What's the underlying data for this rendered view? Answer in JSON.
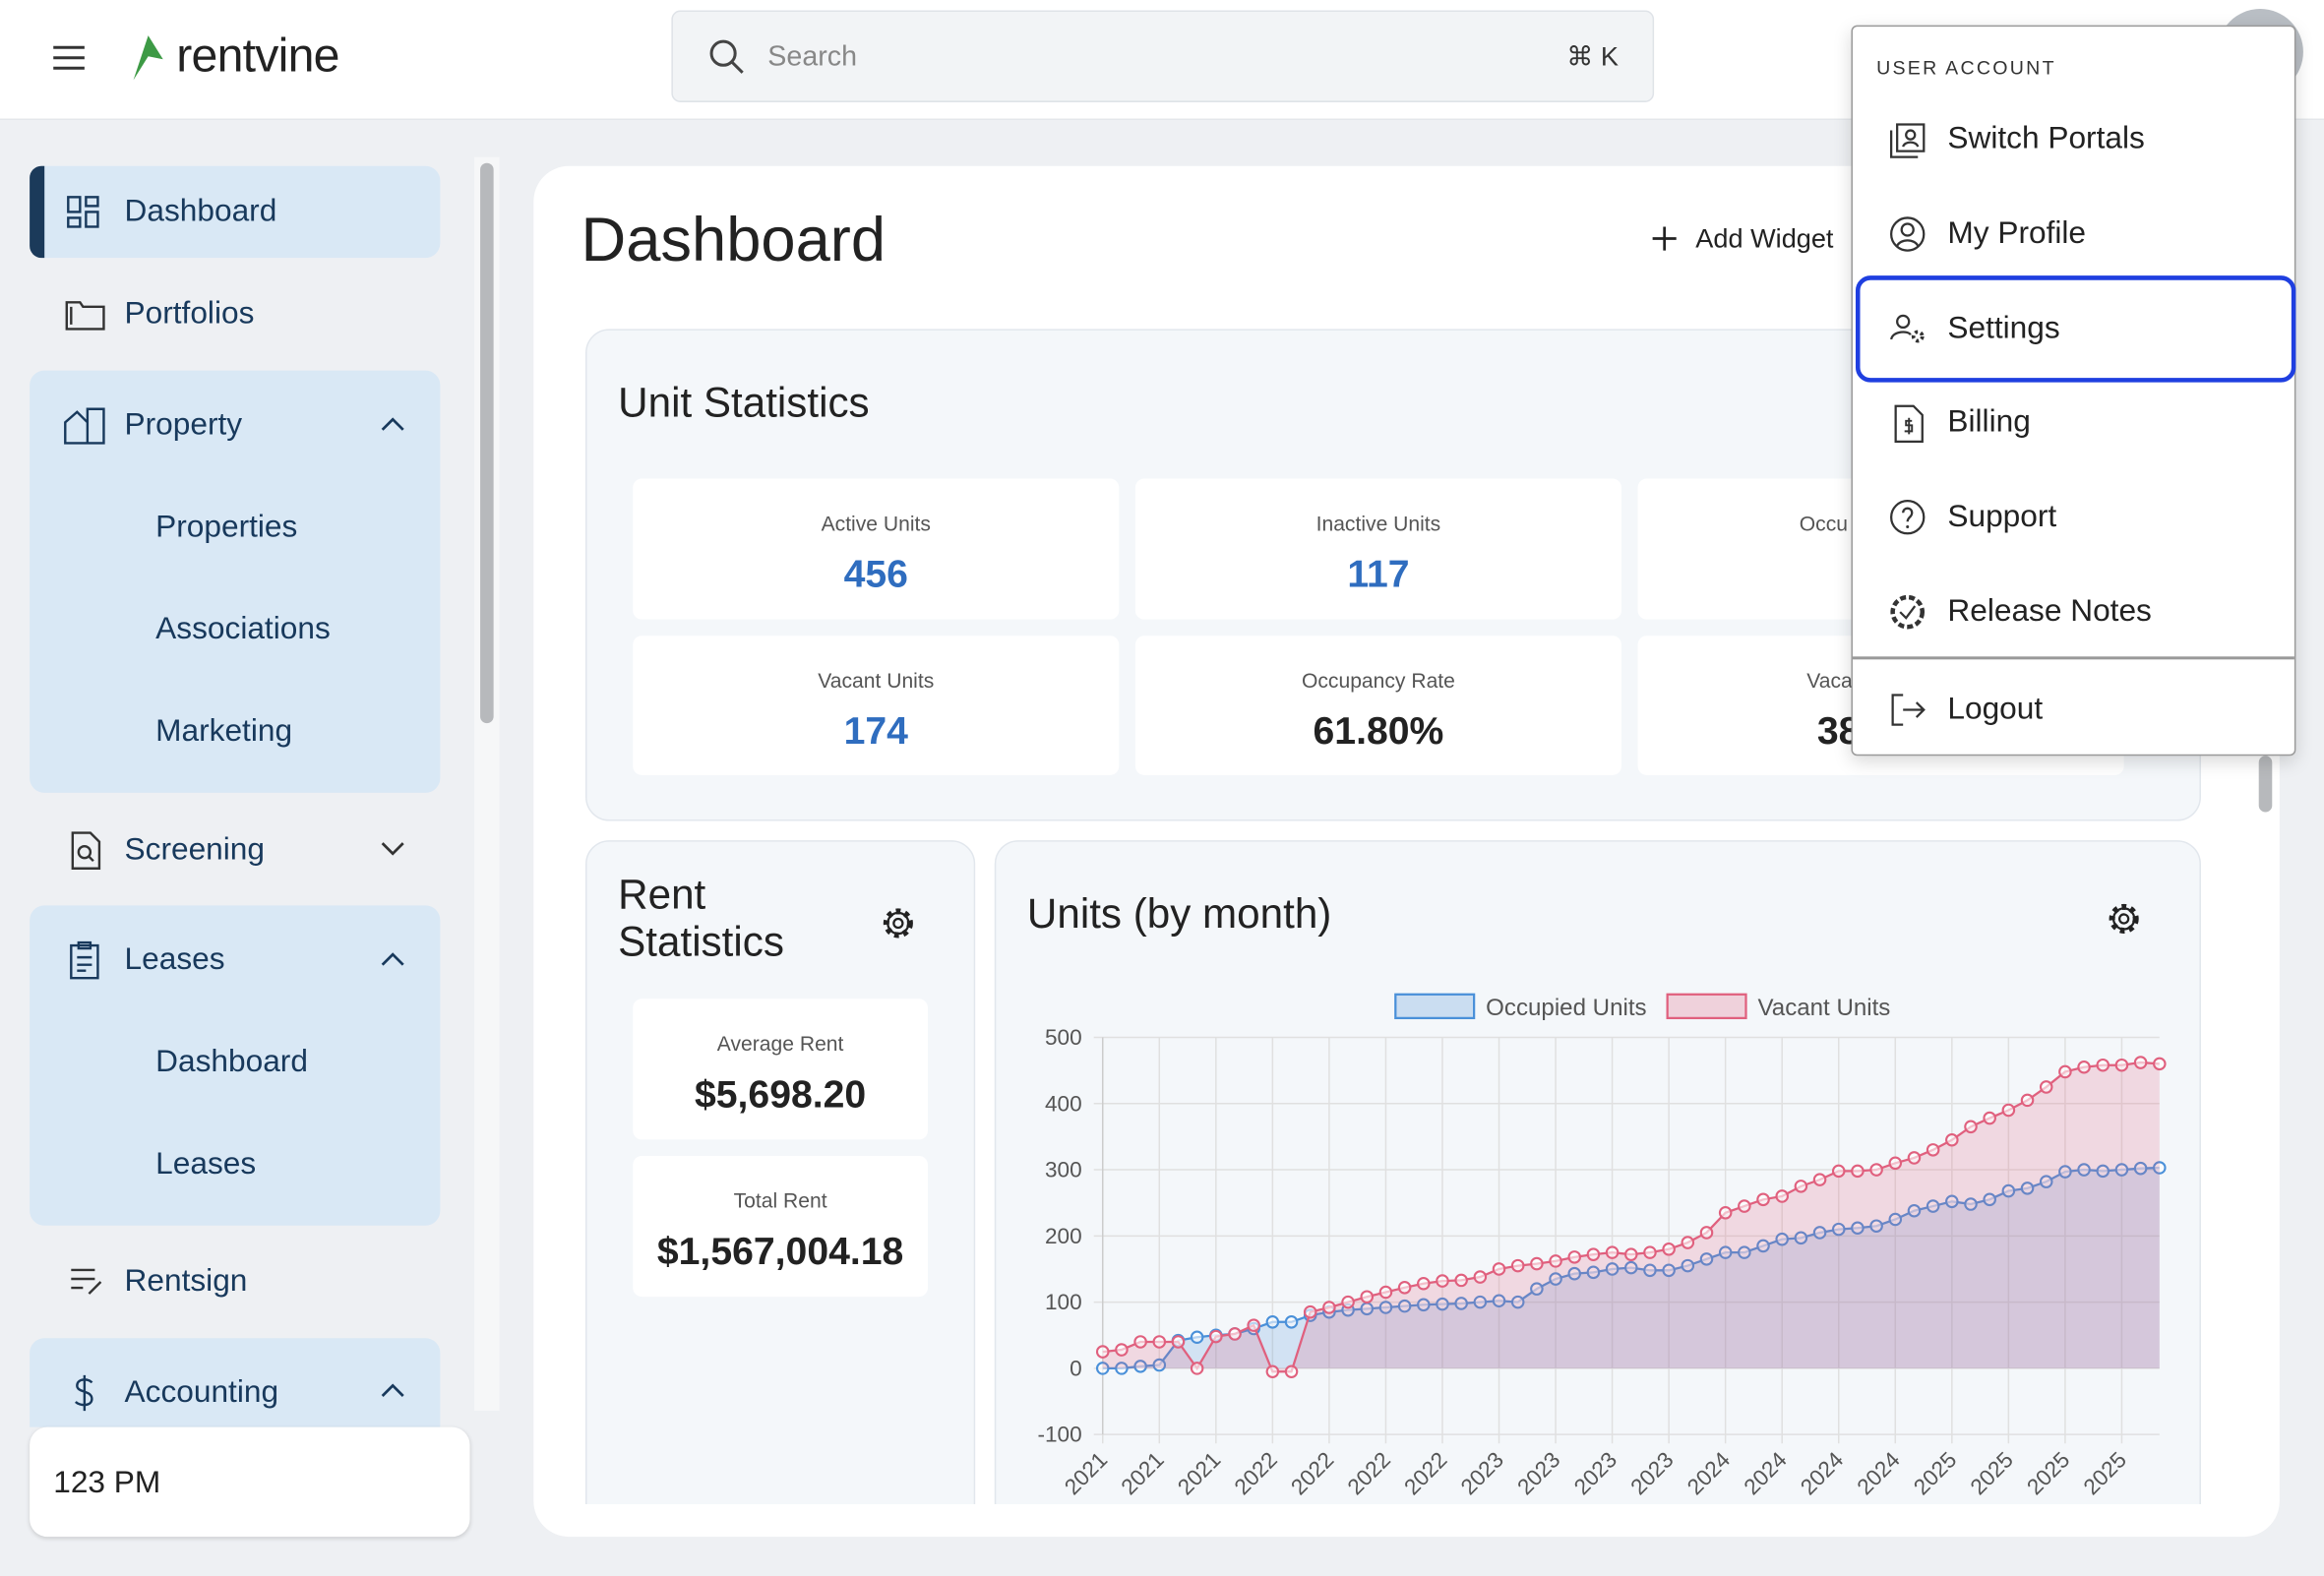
{
  "header": {
    "brand": "rentvine",
    "search_placeholder": "Search",
    "shortcut": "⌘ K"
  },
  "sidebar": {
    "items": [
      {
        "label": "Dashboard"
      },
      {
        "label": "Portfolios"
      },
      {
        "label": "Property",
        "children": [
          "Properties",
          "Associations",
          "Marketing"
        ]
      },
      {
        "label": "Screening"
      },
      {
        "label": "Leases",
        "children": [
          "Dashboard",
          "Leases"
        ]
      },
      {
        "label": "Rentsign"
      },
      {
        "label": "Accounting"
      }
    ],
    "footer": "123 PM"
  },
  "page": {
    "title": "Dashboard",
    "add_widget": "Add Widget"
  },
  "unit_statistics": {
    "title": "Unit Statistics",
    "stats": [
      {
        "label": "Active Units",
        "value": "456"
      },
      {
        "label": "Inactive Units",
        "value": "117"
      },
      {
        "label": "Occu"
      },
      {
        "label": "Vacant Units",
        "value": "174"
      },
      {
        "label": "Occupancy Rate",
        "value": "61.80%"
      },
      {
        "label": "Vaca",
        "value": "38"
      }
    ]
  },
  "rent_statistics": {
    "title": "Rent Statistics",
    "stats": [
      {
        "label": "Average Rent",
        "value": "$5,698.20"
      },
      {
        "label": "Total Rent",
        "value": "$1,567,004.18"
      }
    ]
  },
  "user_menu": {
    "heading": "USER ACCOUNT",
    "items": [
      "Switch Portals",
      "My Profile",
      "Settings",
      "Billing",
      "Support",
      "Release Notes",
      "Logout"
    ]
  },
  "chart_data": {
    "type": "line",
    "title": "Units (by month)",
    "categories": [
      "2021",
      null,
      null,
      "2021",
      null,
      null,
      "2021",
      null,
      null,
      "2022",
      null,
      null,
      "2022",
      null,
      null,
      "2022",
      null,
      null,
      "2022",
      null,
      null,
      "2023",
      null,
      null,
      "2023",
      null,
      null,
      "2023",
      null,
      null,
      "2023",
      null,
      null,
      "2024",
      null,
      null,
      "2024",
      null,
      null,
      "2024",
      null,
      null,
      "2024",
      null,
      null,
      "2025",
      null,
      null,
      "2025",
      null,
      null,
      "2025",
      null,
      null,
      "2025",
      null,
      null
    ],
    "series": [
      {
        "name": "Occupied Units",
        "color": "#4a90d9",
        "values": [
          0,
          0,
          3,
          5,
          42,
          47,
          50,
          52,
          60,
          70,
          70,
          80,
          85,
          88,
          90,
          92,
          94,
          96,
          97,
          98,
          100,
          102,
          100,
          120,
          135,
          143,
          145,
          150,
          152,
          148,
          148,
          155,
          165,
          175,
          175,
          185,
          195,
          197,
          205,
          210,
          212,
          215,
          225,
          238,
          245,
          252,
          248,
          255,
          268,
          272,
          282,
          297,
          300,
          298,
          300,
          302,
          303
        ]
      },
      {
        "name": "Vacant Units",
        "color": "#e0607e",
        "values": [
          25,
          28,
          40,
          40,
          40,
          0,
          48,
          52,
          65,
          -5,
          -5,
          85,
          92,
          100,
          108,
          115,
          122,
          128,
          132,
          133,
          138,
          150,
          155,
          158,
          162,
          168,
          172,
          175,
          172,
          175,
          180,
          190,
          205,
          235,
          245,
          255,
          260,
          275,
          285,
          298,
          298,
          300,
          310,
          318,
          330,
          345,
          365,
          378,
          390,
          405,
          425,
          448,
          455,
          458,
          458,
          462,
          460
        ]
      }
    ],
    "ylim": [
      -100,
      500
    ],
    "yticks": [
      -100,
      0,
      100,
      200,
      300,
      400,
      500
    ],
    "grid": true,
    "legend": "top"
  }
}
